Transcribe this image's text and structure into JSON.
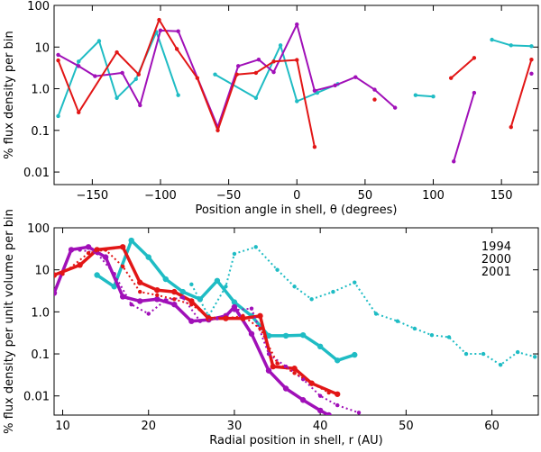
{
  "chart_data": [
    {
      "type": "line",
      "xlabel": "Position angle in shell, θ (degrees)",
      "ylabel": "% flux density per bin",
      "xlim": [
        -178,
        177
      ],
      "ylim": [
        0.005,
        100
      ],
      "yscale": "log",
      "xticks": [
        {
          "value": -150,
          "label": "−150"
        },
        {
          "value": -100,
          "label": "−100"
        },
        {
          "value": -50,
          "label": "−50"
        },
        0,
        50,
        100,
        150
      ],
      "yticks": [
        {
          "value": 0.01,
          "label": "0.01"
        },
        {
          "value": 0.1,
          "label": "0.1"
        },
        {
          "value": 1,
          "label": "1.0"
        },
        10,
        100
      ],
      "series": [
        {
          "color": "#1fbcc4",
          "linestyle": "solid",
          "x": [
            -175,
            -160,
            -145,
            -132,
            -118,
            -103,
            -87,
            null,
            -60,
            -30,
            -12,
            0,
            15,
            30,
            null,
            87,
            100,
            null,
            143,
            157,
            172
          ],
          "values": [
            0.22,
            4.5,
            14,
            0.6,
            1.7,
            23,
            0.7,
            null,
            2.2,
            0.6,
            11,
            0.5,
            0.8,
            1.3,
            null,
            0.7,
            0.65,
            null,
            15,
            11,
            10.5
          ]
        },
        {
          "color": "#a010b8",
          "linestyle": "solid",
          "x": [
            -175,
            -160,
            -148,
            -128,
            -115,
            -100,
            -87,
            -58,
            -43,
            -28,
            -17,
            0,
            13,
            28,
            43,
            57,
            72,
            null,
            115,
            130,
            null,
            172
          ],
          "values": [
            6.5,
            3.5,
            2,
            2.4,
            0.4,
            25,
            24,
            0.12,
            3.5,
            5,
            2.5,
            35,
            0.9,
            1.2,
            1.9,
            0.95,
            0.35,
            null,
            0.018,
            0.8,
            null,
            2.3
          ]
        },
        {
          "color": "#e21616",
          "linestyle": "solid",
          "x": [
            -175,
            -160,
            -132,
            -116,
            -101,
            -88,
            -73,
            -58,
            -44,
            -30,
            -17,
            0,
            13,
            null,
            57,
            null,
            113,
            130,
            null,
            157,
            172
          ],
          "values": [
            4.8,
            0.27,
            7.5,
            2.2,
            45,
            9,
            1.8,
            0.1,
            2.2,
            2.4,
            4.5,
            4.9,
            0.04,
            null,
            0.55,
            null,
            1.8,
            5.5,
            null,
            0.12,
            5
          ]
        }
      ]
    },
    {
      "type": "line",
      "xlabel": "Radial position in shell, r (AU)",
      "ylabel": "% flux density per unit volume per bin",
      "xlim": [
        9,
        65.4
      ],
      "ylim": [
        0.0035,
        100
      ],
      "yscale": "log",
      "legend": "upper right",
      "xticks": [
        10,
        20,
        30,
        40,
        50,
        60
      ],
      "yticks": [
        {
          "value": 0.01,
          "label": "0.01"
        },
        {
          "value": 0.1,
          "label": "0.1"
        },
        {
          "value": 1,
          "label": "1.0"
        },
        10,
        100
      ],
      "series": [
        {
          "name": "1994",
          "color": "#1fbcc4",
          "linestyle": "solid",
          "x": [
            14,
            16,
            18,
            20,
            22,
            24,
            26,
            28,
            30,
            32,
            34,
            36,
            38,
            40,
            42,
            44
          ],
          "values": [
            7.5,
            4,
            50,
            20,
            6,
            3,
            2,
            5.5,
            1.7,
            0.8,
            0.27,
            0.27,
            0.28,
            0.15,
            0.07,
            0.095
          ]
        },
        {
          "name": "2000",
          "color": "#a010b8",
          "linestyle": "solid",
          "x": [
            9,
            11,
            13,
            15,
            17,
            19,
            21,
            23,
            25,
            27,
            29,
            30,
            32,
            34,
            36,
            38,
            40,
            41
          ],
          "values": [
            2.8,
            30,
            35,
            20,
            2.3,
            1.8,
            2,
            1.5,
            0.6,
            0.65,
            0.8,
            1.3,
            0.3,
            0.04,
            0.015,
            0.008,
            0.0045,
            0.0035
          ]
        },
        {
          "name": "2001",
          "color": "#e21616",
          "linestyle": "solid",
          "x": [
            9,
            12,
            14,
            17,
            19,
            21,
            23,
            25,
            27,
            29,
            31,
            33,
            34.5,
            37,
            39,
            42
          ],
          "values": [
            7.5,
            13,
            30,
            35,
            5,
            3.3,
            3,
            1.8,
            0.7,
            0.7,
            0.7,
            0.8,
            0.05,
            0.045,
            0.02,
            0.011
          ]
        },
        {
          "color": "#1fbcc4",
          "linestyle": "dotted",
          "x": [
            25,
            27,
            29,
            30,
            32.5,
            35,
            37,
            39,
            41.5,
            44,
            46.5,
            49,
            51,
            53,
            55,
            57,
            59,
            61,
            63,
            65
          ],
          "values": [
            4.5,
            0.8,
            4,
            24,
            35,
            10,
            4,
            2,
            3,
            5,
            0.9,
            0.6,
            0.4,
            0.28,
            0.25,
            0.1,
            0.1,
            0.055,
            0.11,
            0.085
          ]
        },
        {
          "color": "#a010b8",
          "linestyle": "dotted",
          "x": [
            12,
            14,
            16,
            18,
            20,
            22,
            24,
            26,
            28,
            30,
            32,
            34,
            36,
            38,
            40,
            42,
            44.5
          ],
          "values": [
            30,
            25,
            8,
            1.5,
            0.9,
            1.9,
            2.2,
            0.6,
            0.7,
            1.1,
            1.2,
            0.1,
            0.05,
            0.025,
            0.01,
            0.006,
            0.004
          ]
        },
        {
          "color": "#e21616",
          "linestyle": "dotted",
          "x": [
            10,
            13,
            15,
            17,
            19,
            21,
            23,
            25,
            27,
            29,
            31,
            33,
            35,
            37,
            39,
            41
          ],
          "values": [
            8,
            25,
            30,
            12,
            3,
            2.5,
            2,
            1.5,
            0.75,
            0.7,
            0.8,
            0.4,
            0.06,
            0.035,
            0.02,
            0.012
          ]
        }
      ]
    }
  ]
}
